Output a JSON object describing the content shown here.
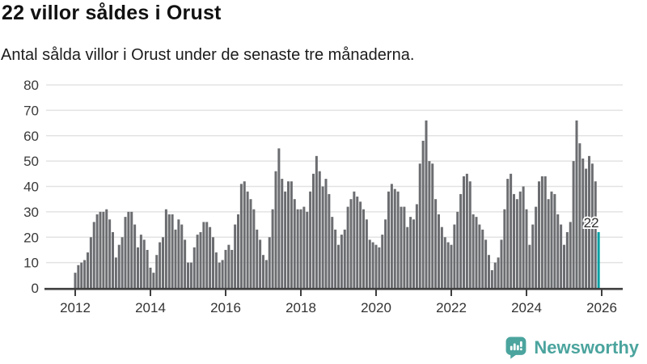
{
  "title": "22 villor såldes i Orust",
  "subtitle": "Antal sålda villor i Orust under de senaste tre månaderna.",
  "footer": {
    "brand": "Newsworthy",
    "brand_color": "#4BA49E",
    "logo_icon": "bar-chart-speech-bubble-with-exclamation"
  },
  "chart_data": {
    "type": "bar",
    "title": "22 villor såldes i Orust",
    "subtitle": "Antal sålda villor i Orust under de senaste tre månaderna.",
    "x_unit": "month",
    "x_start": "2012-01",
    "x_end": "2025-12",
    "x_tick_labels": [
      "2012",
      "2014",
      "2016",
      "2018",
      "2020",
      "2022",
      "2024",
      "2026"
    ],
    "y_tick_labels": [
      "0",
      "10",
      "20",
      "30",
      "40",
      "50",
      "60",
      "70",
      "80"
    ],
    "y_ticks": [
      0,
      10,
      20,
      30,
      40,
      50,
      60,
      70,
      80
    ],
    "ylim": [
      0,
      80
    ],
    "grid": "horizontal",
    "legend": "none",
    "bar_color": "#6B6D70",
    "highlight_color": "#00A0A4",
    "axis_color": "#3F3F3F",
    "grid_color": "#E3E3E3",
    "highlight_index": 167,
    "highlight_label": "22",
    "values": [
      6,
      9,
      10,
      11,
      14,
      20,
      26,
      29,
      30,
      30,
      31,
      27,
      22,
      12,
      17,
      20,
      28,
      30,
      30,
      25,
      16,
      21,
      19,
      15,
      8,
      6,
      13,
      18,
      20,
      31,
      29,
      29,
      23,
      27,
      25,
      19,
      10,
      10,
      16,
      21,
      22,
      26,
      26,
      24,
      20,
      14,
      10,
      11,
      15,
      17,
      15,
      25,
      29,
      41,
      42,
      38,
      35,
      31,
      23,
      19,
      13,
      11,
      20,
      31,
      46,
      55,
      43,
      38,
      42,
      42,
      35,
      31,
      31,
      32,
      30,
      38,
      45,
      52,
      46,
      40,
      43,
      37,
      28,
      23,
      17,
      21,
      23,
      32,
      35,
      38,
      36,
      34,
      31,
      27,
      19,
      18,
      17,
      16,
      21,
      27,
      38,
      41,
      39,
      38,
      32,
      32,
      24,
      28,
      27,
      33,
      49,
      58,
      66,
      50,
      49,
      35,
      29,
      24,
      20,
      18,
      17,
      25,
      30,
      37,
      44,
      45,
      42,
      29,
      28,
      25,
      23,
      19,
      13,
      7,
      10,
      12,
      19,
      31,
      43,
      45,
      37,
      35,
      38,
      40,
      31,
      17,
      25,
      32,
      42,
      44,
      44,
      35,
      38,
      37,
      29,
      25,
      17,
      22,
      26,
      50,
      66,
      57,
      51,
      47,
      52,
      49,
      42,
      22
    ]
  }
}
